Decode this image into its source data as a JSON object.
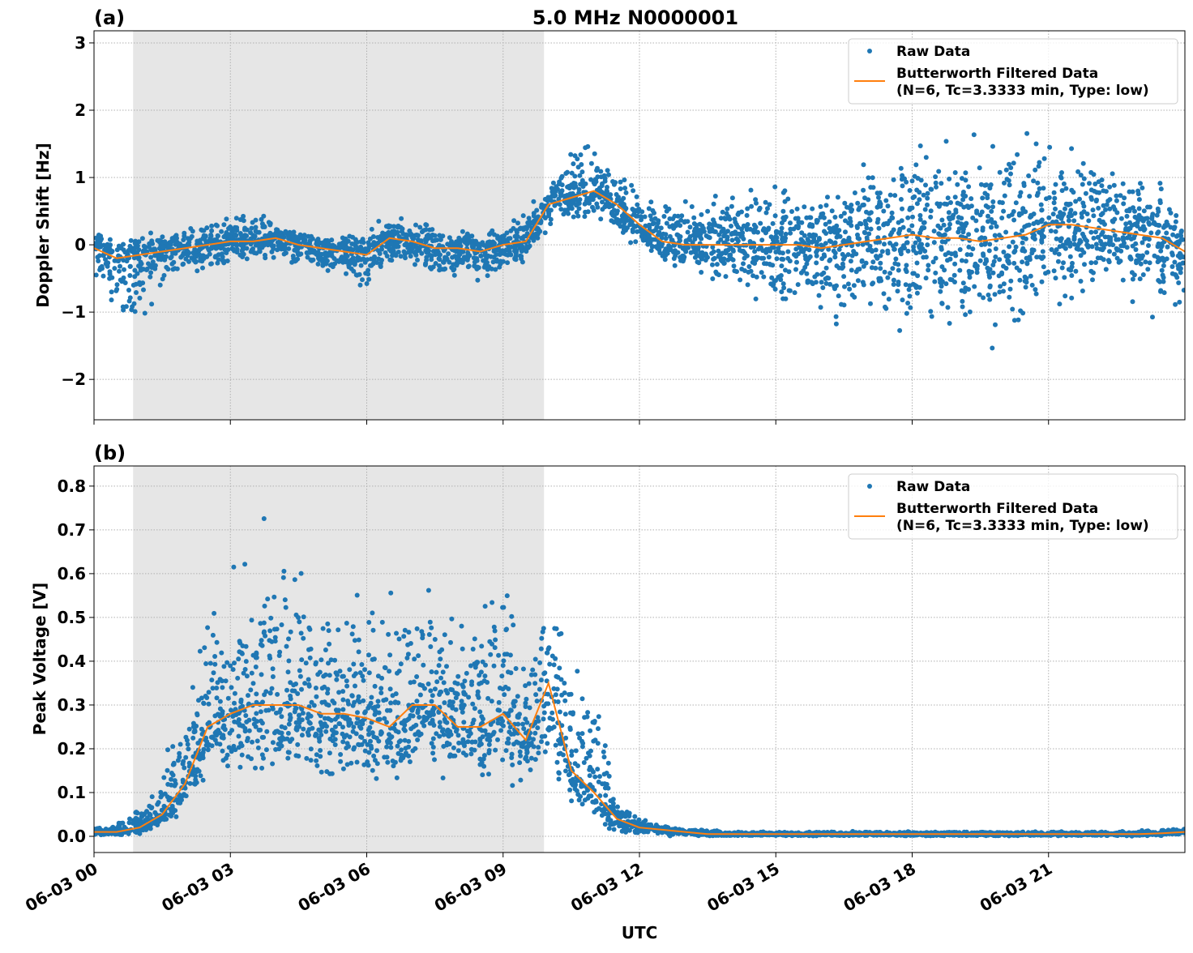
{
  "title": "5.0 MHz N0000001",
  "xlabel": "UTC",
  "colors": {
    "raw": "#1f77b4",
    "filtered": "#ff7f0e",
    "shade": "#e6e6e6",
    "grid": "#b0b0b0"
  },
  "legend": {
    "placement": "top-right",
    "raw": "Raw Data",
    "filtered_line1": "Butterworth Filtered Data",
    "filtered_line2": "(N=6, Tc=3.3333 min, Type: low)"
  },
  "chart_data": [
    {
      "type": "scatter",
      "panel_label": "(a)",
      "ylabel": "Doppler Shift [Hz]",
      "x_unit": "hours UTC on 06-03",
      "xlim": [
        0,
        24
      ],
      "ylim": [
        -2.6,
        3.18
      ],
      "yticks": [
        -2,
        -1,
        0,
        1,
        2,
        3
      ],
      "ytick_labels": [
        "−2",
        "−1",
        "0",
        "1",
        "2",
        "3"
      ],
      "xticks": [
        0,
        3,
        6,
        9,
        12,
        15,
        18,
        21
      ],
      "xtick_labels": [
        "06-03 00",
        "06-03 03",
        "06-03 06",
        "06-03 09",
        "06-03 12",
        "06-03 15",
        "06-03 18",
        "06-03 21"
      ],
      "grid": true,
      "shaded_span": [
        0.86,
        9.9
      ],
      "x": [
        0,
        0.5,
        1,
        1.5,
        2,
        2.5,
        3,
        3.5,
        4,
        4.5,
        5,
        5.5,
        6,
        6.5,
        7,
        7.5,
        8,
        8.5,
        9,
        9.5,
        10,
        10.5,
        11,
        11.5,
        12,
        12.5,
        13,
        13.5,
        14,
        14.5,
        15,
        15.5,
        16,
        16.5,
        17,
        17.5,
        18,
        18.5,
        19,
        19.5,
        20,
        20.5,
        21,
        21.5,
        22,
        22.5,
        23,
        23.5,
        24
      ],
      "series": [
        {
          "name": "Butterworth Filtered Data",
          "kind": "line",
          "values": [
            -0.05,
            -0.2,
            -0.15,
            -0.1,
            -0.05,
            0.0,
            0.05,
            0.05,
            0.1,
            0.0,
            -0.05,
            -0.1,
            -0.15,
            0.1,
            0.05,
            -0.05,
            -0.05,
            -0.1,
            0.0,
            0.05,
            0.6,
            0.7,
            0.8,
            0.6,
            0.3,
            0.05,
            0.0,
            0.0,
            0.0,
            0.0,
            0.0,
            0.0,
            -0.05,
            0.0,
            0.05,
            0.1,
            0.15,
            0.1,
            0.1,
            0.05,
            0.1,
            0.15,
            0.3,
            0.3,
            0.25,
            0.2,
            0.15,
            0.1,
            -0.1
          ]
        },
        {
          "name": "Raw Data",
          "kind": "scatter-envelope",
          "low": [
            -0.5,
            -1.3,
            -1.4,
            -0.7,
            -0.5,
            -0.4,
            -0.35,
            -0.3,
            -0.3,
            -0.5,
            -0.6,
            -0.6,
            -0.9,
            -0.4,
            -0.4,
            -0.6,
            -0.7,
            -0.7,
            -0.6,
            -0.3,
            0.2,
            0.3,
            0.3,
            0.1,
            -0.1,
            -0.3,
            -0.5,
            -0.6,
            -0.8,
            -1.0,
            -1.1,
            -1.2,
            -1.3,
            -1.4,
            -1.5,
            -1.6,
            -1.6,
            -1.6,
            -1.7,
            -2.0,
            -1.6,
            -1.5,
            -1.3,
            -1.0,
            -0.8,
            -0.7,
            -1.0,
            -1.3,
            -1.3
          ],
          "high": [
            0.3,
            0.1,
            0.2,
            0.3,
            0.3,
            0.4,
            0.5,
            0.55,
            0.4,
            0.2,
            0.2,
            0.2,
            0.3,
            0.5,
            0.4,
            0.4,
            0.3,
            0.3,
            0.3,
            0.6,
            1.1,
            1.5,
            1.7,
            1.2,
            1.0,
            0.8,
            0.8,
            0.8,
            0.9,
            1.0,
            1.1,
            1.1,
            1.1,
            1.2,
            1.5,
            1.7,
            1.8,
            1.8,
            1.8,
            1.9,
            1.9,
            1.9,
            1.8,
            1.6,
            1.5,
            1.3,
            1.3,
            1.0,
            0.4
          ]
        }
      ]
    },
    {
      "type": "scatter",
      "panel_label": "(b)",
      "ylabel": "Peak Voltage [V]",
      "x_unit": "hours UTC on 06-03",
      "xlim": [
        0,
        24
      ],
      "ylim": [
        -0.037,
        0.846
      ],
      "yticks": [
        0.0,
        0.1,
        0.2,
        0.3,
        0.4,
        0.5,
        0.6,
        0.7,
        0.8
      ],
      "ytick_labels": [
        "0.0",
        "0.1",
        "0.2",
        "0.3",
        "0.4",
        "0.5",
        "0.6",
        "0.7",
        "0.8"
      ],
      "xticks": [
        0,
        3,
        6,
        9,
        12,
        15,
        18,
        21
      ],
      "xtick_labels": [
        "06-03 00",
        "06-03 03",
        "06-03 06",
        "06-03 09",
        "06-03 12",
        "06-03 15",
        "06-03 18",
        "06-03 21"
      ],
      "grid": true,
      "shaded_span": [
        0.86,
        9.9
      ],
      "x": [
        0,
        0.5,
        1,
        1.5,
        2,
        2.5,
        3,
        3.5,
        4,
        4.5,
        5,
        5.5,
        6,
        6.5,
        7,
        7.5,
        8,
        8.5,
        9,
        9.5,
        10,
        10.5,
        11,
        11.5,
        12,
        12.5,
        13,
        13.5,
        14,
        14.5,
        15,
        15.5,
        16,
        16.5,
        17,
        17.5,
        18,
        18.5,
        19,
        19.5,
        20,
        20.5,
        21,
        21.5,
        22,
        22.5,
        23,
        23.5,
        24
      ],
      "series": [
        {
          "name": "Butterworth Filtered Data",
          "kind": "line",
          "values": [
            0.01,
            0.01,
            0.02,
            0.05,
            0.12,
            0.25,
            0.28,
            0.3,
            0.3,
            0.3,
            0.28,
            0.28,
            0.27,
            0.25,
            0.3,
            0.3,
            0.25,
            0.25,
            0.28,
            0.22,
            0.35,
            0.15,
            0.1,
            0.04,
            0.02,
            0.015,
            0.01,
            0.005,
            0.005,
            0.005,
            0.005,
            0.005,
            0.005,
            0.005,
            0.005,
            0.005,
            0.005,
            0.005,
            0.005,
            0.005,
            0.005,
            0.005,
            0.005,
            0.005,
            0.005,
            0.005,
            0.005,
            0.007,
            0.01
          ]
        },
        {
          "name": "Raw Data",
          "kind": "scatter-envelope",
          "low": [
            0,
            0,
            0,
            0.01,
            0.05,
            0.1,
            0.1,
            0.1,
            0.1,
            0.1,
            0.1,
            0.1,
            0.1,
            0.1,
            0.1,
            0.1,
            0.1,
            0.1,
            0.1,
            0.1,
            0.12,
            0.05,
            0.02,
            0,
            0,
            0,
            0,
            0,
            0,
            0,
            0,
            0,
            0,
            0,
            0,
            0,
            0,
            0,
            0,
            0,
            0,
            0,
            0,
            0,
            0,
            0,
            0,
            0,
            0
          ],
          "high": [
            0.02,
            0.03,
            0.07,
            0.2,
            0.4,
            0.65,
            0.6,
            0.78,
            0.7,
            0.75,
            0.65,
            0.6,
            0.62,
            0.58,
            0.75,
            0.6,
            0.5,
            0.6,
            0.65,
            0.45,
            0.68,
            0.45,
            0.4,
            0.1,
            0.05,
            0.03,
            0.02,
            0.015,
            0.012,
            0.012,
            0.012,
            0.012,
            0.012,
            0.012,
            0.012,
            0.012,
            0.012,
            0.012,
            0.012,
            0.012,
            0.012,
            0.012,
            0.012,
            0.012,
            0.012,
            0.012,
            0.015,
            0.02,
            0.025
          ]
        }
      ]
    }
  ]
}
